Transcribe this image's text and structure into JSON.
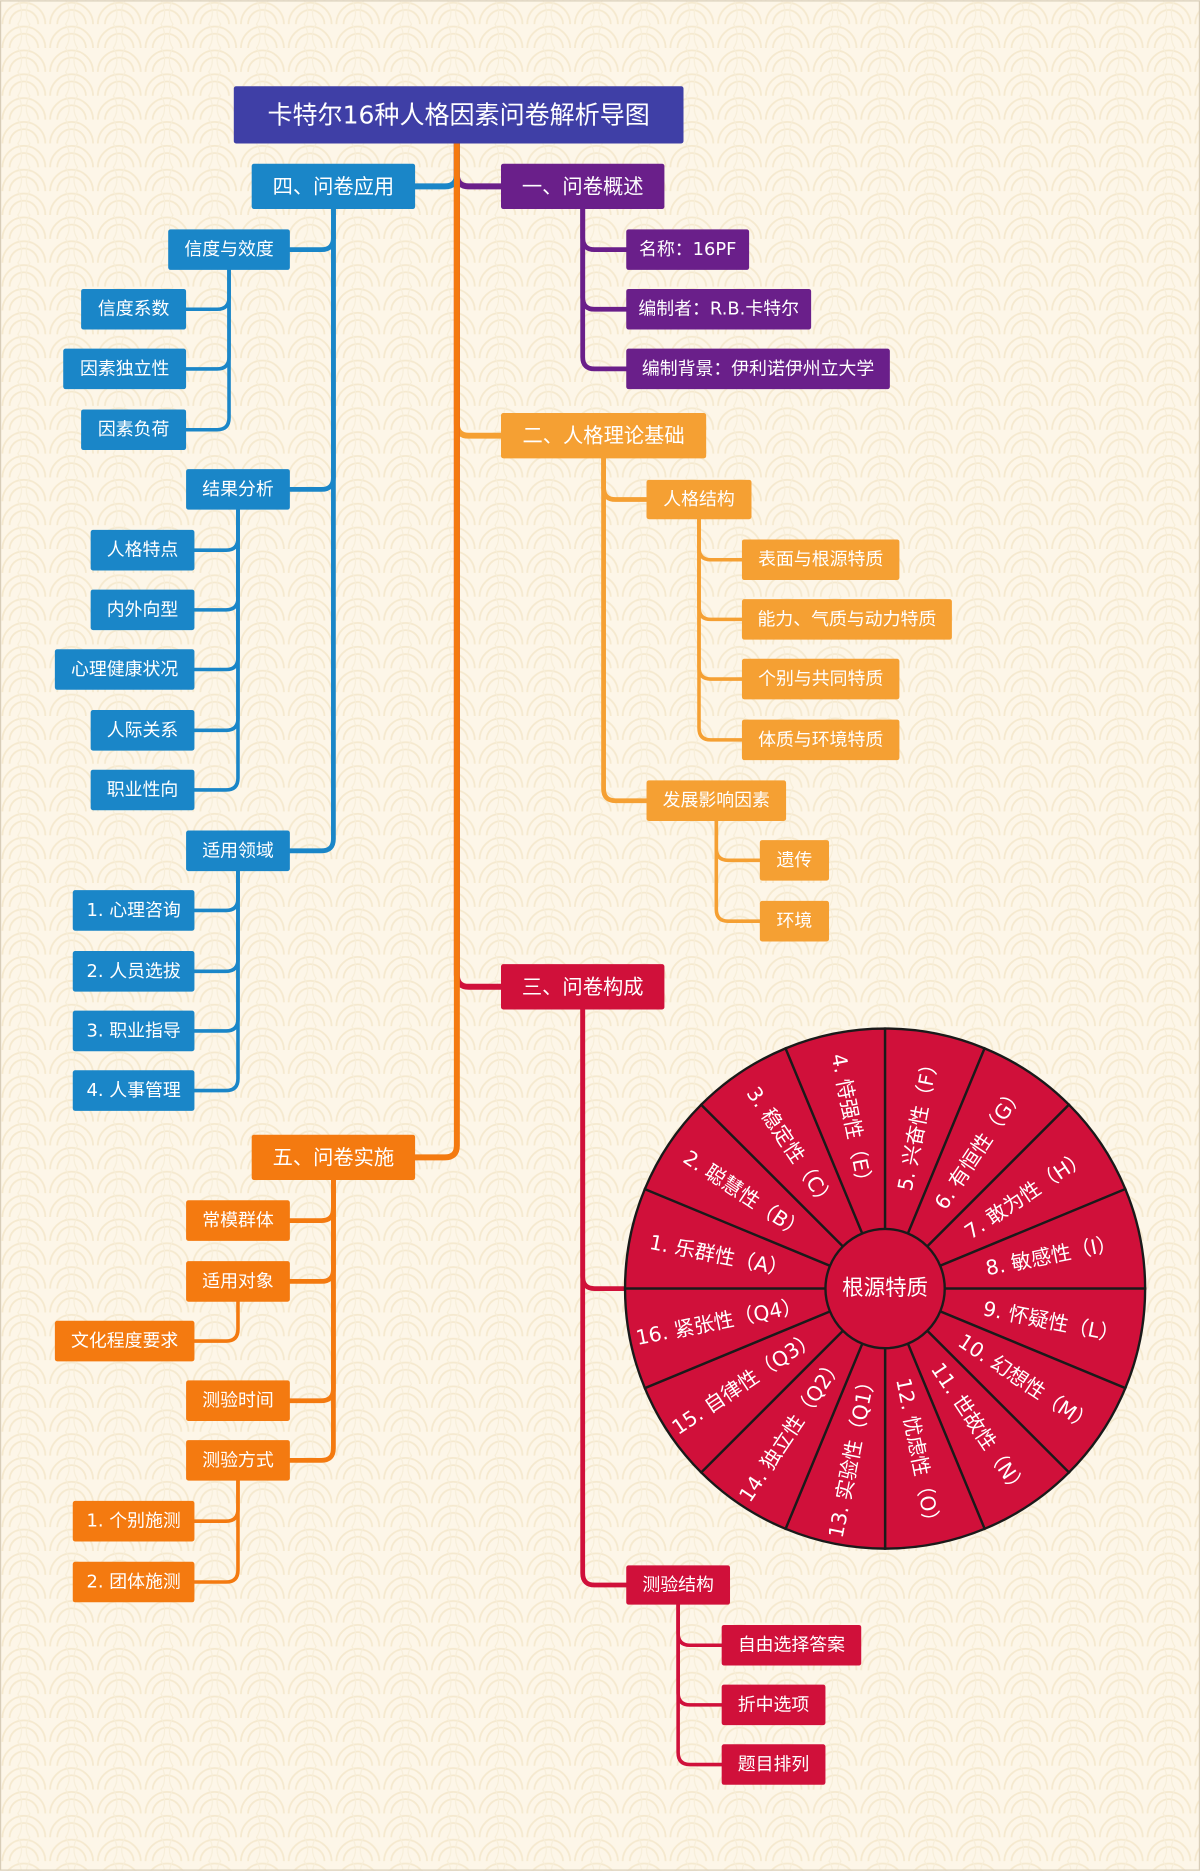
{
  "title": "卡特尔16种人格因素问卷解析导图",
  "branches": [
    {
      "label": "一、问卷概述",
      "color": "#6a1f8a",
      "children": [
        {
          "label": "名称：16PF"
        },
        {
          "label": "编制者：R.B.卡特尔"
        },
        {
          "label": "编制背景：伊利诺伊州立大学"
        }
      ]
    },
    {
      "label": "二、人格理论基础",
      "color": "#f5a033",
      "children": [
        {
          "label": "人格结构",
          "children": [
            {
              "label": "表面与根源特质"
            },
            {
              "label": "能力、气质与动力特质"
            },
            {
              "label": "个别与共同特质"
            },
            {
              "label": "体质与环境特质"
            }
          ]
        },
        {
          "label": "发展影响因素",
          "children": [
            {
              "label": "遗传"
            },
            {
              "label": "环境"
            }
          ]
        }
      ]
    },
    {
      "label": "三、问卷构成",
      "color": "#d0103a",
      "children": [
        {
          "center": "根源特质",
          "segments": [
            "1. 乐群性（A）",
            "2. 聪慧性（B）",
            "3. 稳定性（C）",
            "4. 恃强性（E）",
            "5. 兴奋性（F）",
            "6. 有恒性（G）",
            "7. 敢为性（H）",
            "8. 敏感性（I）",
            "9. 怀疑性（L）",
            "10. 幻想性（M）",
            "11. 世故性（N）",
            "12. 忧虑性（O）",
            "13. 实验性（Q1）",
            "14. 独立性（Q2）",
            "15. 自律性（Q3）",
            "16. 紧张性（Q4）"
          ]
        },
        {
          "label": "测验结构",
          "children": [
            {
              "label": "自由选择答案"
            },
            {
              "label": "折中选项"
            },
            {
              "label": "题目排列"
            }
          ]
        }
      ]
    },
    {
      "label": "四、问卷应用",
      "color": "#1a86c8",
      "children": [
        {
          "label": "信度与效度",
          "children": [
            {
              "label": "信度系数"
            },
            {
              "label": "因素独立性"
            },
            {
              "label": "因素负荷"
            }
          ]
        },
        {
          "label": "结果分析",
          "children": [
            {
              "label": "人格特点"
            },
            {
              "label": "内外向型"
            },
            {
              "label": "心理健康状况"
            },
            {
              "label": "人际关系"
            },
            {
              "label": "职业性向"
            }
          ]
        },
        {
          "label": "适用领域",
          "children": [
            {
              "label": "1. 心理咨询"
            },
            {
              "label": "2. 人员选拔"
            },
            {
              "label": "3. 职业指导"
            },
            {
              "label": "4. 人事管理"
            }
          ]
        }
      ]
    },
    {
      "label": "五、问卷实施",
      "color": "#f47a10",
      "children": [
        {
          "label": "常模群体"
        },
        {
          "label": "适用对象",
          "children": [
            {
              "label": "文化程度要求"
            }
          ]
        },
        {
          "label": "测验时间"
        },
        {
          "label": "测验方式",
          "children": [
            {
              "label": "1. 个别施测"
            },
            {
              "label": "2. 团体施测"
            }
          ]
        }
      ]
    }
  ]
}
